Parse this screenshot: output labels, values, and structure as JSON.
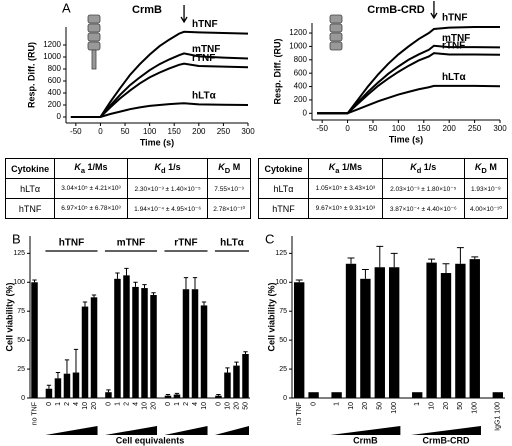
{
  "panels": {
    "a": "A",
    "b": "B",
    "c": "C"
  },
  "chart_data": [
    {
      "type": "line",
      "title": "CrmB",
      "x_label": "Time (s)",
      "y_label": "Resp. Diff. (RU)",
      "x": [
        -60,
        0,
        20,
        40,
        60,
        80,
        100,
        120,
        140,
        160,
        170,
        200,
        250,
        300
      ],
      "xlim": [
        -70,
        300
      ],
      "xticks": [
        -50,
        0,
        50,
        100,
        150,
        200,
        250,
        300
      ],
      "ylim": [
        -100,
        1500
      ],
      "yticks": [
        0,
        200,
        400,
        600,
        800,
        1000,
        1200
      ],
      "arrow_x": 170,
      "series": [
        {
          "name": "hTNF",
          "color": "#000000",
          "values": [
            0,
            0,
            250,
            480,
            700,
            880,
            1040,
            1180,
            1290,
            1390,
            1420,
            1410,
            1400,
            1390
          ]
        },
        {
          "name": "mTNF",
          "color": "#000000",
          "values": [
            0,
            0,
            190,
            370,
            530,
            660,
            780,
            880,
            960,
            1030,
            1060,
            1010,
            990,
            975
          ]
        },
        {
          "name": "rTNF",
          "color": "#000000",
          "values": [
            0,
            0,
            160,
            310,
            440,
            560,
            660,
            740,
            810,
            870,
            890,
            850,
            840,
            830
          ]
        },
        {
          "name": "hLTα",
          "color": "#000000",
          "values": [
            0,
            0,
            50,
            90,
            130,
            160,
            185,
            200,
            215,
            225,
            230,
            210,
            205,
            200
          ]
        }
      ]
    },
    {
      "type": "line",
      "title": "CrmB-CRD",
      "x_label": "Time (s)",
      "y_label": "Resp. Diff. (RU)",
      "x": [
        -60,
        0,
        20,
        40,
        60,
        80,
        100,
        120,
        140,
        160,
        170,
        200,
        250,
        300
      ],
      "xlim": [
        -70,
        300
      ],
      "xticks": [
        -50,
        0,
        50,
        100,
        150,
        200,
        250,
        300
      ],
      "ylim": [
        -100,
        1350
      ],
      "yticks": [
        0,
        200,
        400,
        600,
        800,
        1000,
        1200
      ],
      "arrow_x": 170,
      "series": [
        {
          "name": "hTNF",
          "color": "#000000",
          "values": [
            0,
            0,
            200,
            400,
            580,
            740,
            880,
            1000,
            1110,
            1200,
            1260,
            1280,
            1290,
            1290
          ]
        },
        {
          "name": "mTNF",
          "color": "#000000",
          "values": [
            0,
            0,
            160,
            320,
            460,
            590,
            700,
            800,
            880,
            950,
            1010,
            990,
            990,
            985
          ]
        },
        {
          "name": "rTNF",
          "color": "#000000",
          "values": [
            0,
            0,
            140,
            280,
            410,
            520,
            620,
            710,
            790,
            850,
            900,
            880,
            880,
            875
          ]
        },
        {
          "name": "hLTα",
          "color": "#000000",
          "values": [
            0,
            0,
            60,
            120,
            180,
            230,
            280,
            320,
            360,
            390,
            410,
            410,
            410,
            405
          ]
        }
      ]
    },
    {
      "type": "bar",
      "y_label": "Cell viability (%)",
      "x_label": "Cell equivalents",
      "color": "#000000",
      "ylim": [
        0,
        140
      ],
      "yticks": [
        0,
        25,
        50,
        75,
        100,
        125
      ],
      "group_label_position": "top",
      "groups": [
        {
          "categories": [
            "no TNF"
          ],
          "values": [
            100
          ],
          "errors": [
            2
          ]
        },
        {
          "name": "hTNF",
          "categories": [
            "0",
            "1",
            "2",
            "4",
            "10",
            "20"
          ],
          "values": [
            8,
            17,
            21,
            22,
            79,
            87
          ],
          "errors": [
            3,
            5,
            12,
            20,
            4,
            2
          ]
        },
        {
          "name": "mTNF",
          "categories": [
            "0",
            "1",
            "2",
            "4",
            "10",
            "20"
          ],
          "values": [
            5,
            103,
            106,
            96,
            95,
            89
          ],
          "errors": [
            2,
            5,
            6,
            4,
            3,
            2
          ]
        },
        {
          "name": "rTNF",
          "categories": [
            "0",
            "1",
            "2",
            "4",
            "10"
          ],
          "values": [
            2,
            3,
            94,
            94,
            80
          ],
          "errors": [
            1,
            1,
            10,
            10,
            3
          ]
        },
        {
          "name": "hLTα",
          "categories": [
            "0",
            "10",
            "20",
            "50"
          ],
          "values": [
            2,
            22,
            28,
            38
          ],
          "errors": [
            1,
            4,
            3,
            2
          ]
        }
      ]
    },
    {
      "type": "bar",
      "y_label": "Cell viability (%)",
      "color": "#000000",
      "ylim": [
        0,
        140
      ],
      "yticks": [
        0,
        25,
        50,
        75,
        100,
        125
      ],
      "group_label_position": "bottom",
      "groups": [
        {
          "categories": [
            "no TNF",
            "0"
          ],
          "values": [
            100,
            5
          ],
          "errors": [
            2,
            null
          ]
        },
        {
          "name": "CrmB",
          "categories": [
            "1",
            "10",
            "20",
            "50",
            "100"
          ],
          "values": [
            5,
            116,
            103,
            113,
            113
          ],
          "errors": [
            null,
            5,
            8,
            18,
            12
          ]
        },
        {
          "name": "CrmB-CRD",
          "categories": [
            "1",
            "10",
            "20",
            "50",
            "100"
          ],
          "values": [
            5,
            117,
            108,
            116,
            120
          ],
          "errors": [
            null,
            3,
            8,
            14,
            2
          ]
        },
        {
          "categories": [
            "IgG1 100"
          ],
          "values": [
            5
          ],
          "errors": [
            null
          ]
        }
      ]
    }
  ],
  "tables": [
    {
      "header": [
        "Cytokine",
        {
          "k": "K",
          "sub": "a",
          "unit": "1/Ms"
        },
        {
          "k": "K",
          "sub": "d",
          "unit": "1/s"
        },
        {
          "k": "K",
          "sub": "D",
          "unit": "M"
        }
      ],
      "rows": [
        [
          "hLTα",
          "3.04×10⁵ ± 4.21×10³",
          "2.30×10⁻³ ± 1.40×10⁻⁵",
          "7.55×10⁻⁹"
        ],
        [
          "hTNF",
          "6.97×10⁵ ± 6.78×10³",
          "1.94×10⁻⁴ ± 4.95×10⁻⁶",
          "2.78×10⁻¹⁰"
        ]
      ]
    },
    {
      "header": [
        "Cytokine",
        {
          "k": "K",
          "sub": "a",
          "unit": "1/Ms"
        },
        {
          "k": "K",
          "sub": "d",
          "unit": "1/s"
        },
        {
          "k": "K",
          "sub": "D",
          "unit": "M"
        }
      ],
      "rows": [
        [
          "hLTα",
          "1.05×10⁵ ± 3.43×10³",
          "2.03×10⁻³ ± 1.80×10⁻⁵",
          "1.93×10⁻⁸"
        ],
        [
          "hTNF",
          "9.67×10⁵ ± 9.31×10³",
          "3.87×10⁻⁴ ± 4.40×10⁻⁶",
          "4.00×10⁻¹⁰"
        ]
      ]
    }
  ]
}
